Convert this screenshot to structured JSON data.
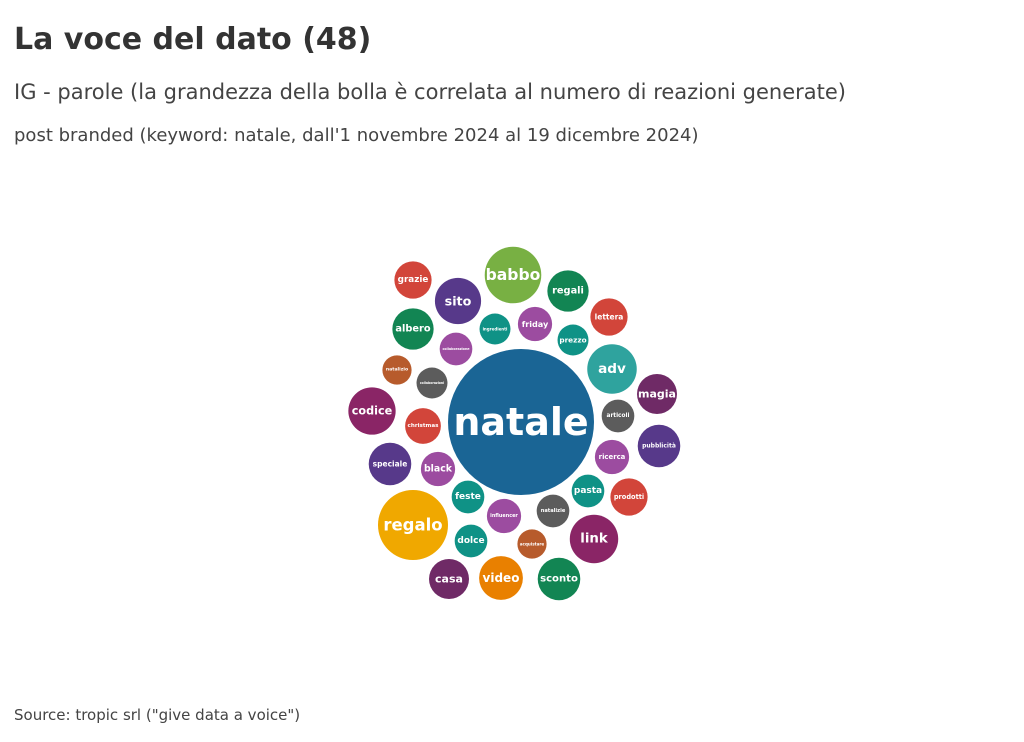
{
  "title": "La voce del dato (48)",
  "subtitle": "IG - parole (la grandezza della bolla è correlata al numero di reazioni generate)",
  "note": "post branded (keyword: natale, dall'1 novembre 2024 al 19 dicembre 2024)",
  "source": "Source: tropic srl (\"give data a voice\")",
  "chart_data": {
    "type": "bubble",
    "size_encoding": "numero di reazioni generate",
    "bubbles": [
      {
        "label": "natale",
        "size": 100,
        "color": "#1a6595"
      },
      {
        "label": "regalo",
        "size": 23,
        "color": "#f0a800"
      },
      {
        "label": "babbo",
        "size": 15,
        "color": "#78b043"
      },
      {
        "label": "adv",
        "size": 11.5,
        "color": "#2fa39e"
      },
      {
        "label": "link",
        "size": 11,
        "color": "#8a2566"
      },
      {
        "label": "codice",
        "size": 10.5,
        "color": "#8a2566"
      },
      {
        "label": "sito",
        "size": 10,
        "color": "#57398a"
      },
      {
        "label": "video",
        "size": 9,
        "color": "#e98000"
      },
      {
        "label": "sconto",
        "size": 8.5,
        "color": "#128553"
      },
      {
        "label": "pubblicità",
        "size": 8.5,
        "color": "#57398a"
      },
      {
        "label": "speciale",
        "size": 8.5,
        "color": "#57398a"
      },
      {
        "label": "regali",
        "size": 8,
        "color": "#128553"
      },
      {
        "label": "albero",
        "size": 8,
        "color": "#128553"
      },
      {
        "label": "casa",
        "size": 7.5,
        "color": "#6f2a66"
      },
      {
        "label": "magia",
        "size": 7.5,
        "color": "#6f2a66"
      },
      {
        "label": "lettera",
        "size": 6.5,
        "color": "#d2453a"
      },
      {
        "label": "prodotti",
        "size": 6.5,
        "color": "#d2453a"
      },
      {
        "label": "grazie",
        "size": 6.5,
        "color": "#d2453a"
      },
      {
        "label": "christmas",
        "size": 6,
        "color": "#d2453a"
      },
      {
        "label": "black",
        "size": 5.5,
        "color": "#9c4ca0"
      },
      {
        "label": "ricerca",
        "size": 5.5,
        "color": "#9c4ca0"
      },
      {
        "label": "friday",
        "size": 5.5,
        "color": "#9c4ca0"
      },
      {
        "label": "influencer",
        "size": 5.5,
        "color": "#9c4ca0"
      },
      {
        "label": "collaborazione",
        "size": 5,
        "color": "#9c4ca0"
      },
      {
        "label": "articoli",
        "size": 5,
        "color": "#5c5c5c"
      },
      {
        "label": "natalizie",
        "size": 5,
        "color": "#5c5c5c"
      },
      {
        "label": "collaborazioni",
        "size": 4.5,
        "color": "#5c5c5c"
      },
      {
        "label": "feste",
        "size": 5,
        "color": "#0f9286"
      },
      {
        "label": "dolce",
        "size": 5,
        "color": "#0f9286"
      },
      {
        "label": "pasta",
        "size": 5,
        "color": "#0f9286"
      },
      {
        "label": "ingredienti",
        "size": 4.5,
        "color": "#0f9286"
      },
      {
        "label": "prezzo",
        "size": 4.5,
        "color": "#0f9286"
      },
      {
        "label": "natalizio",
        "size": 4,
        "color": "#b75b2c"
      },
      {
        "label": "acquistare",
        "size": 4,
        "color": "#b75b2c"
      }
    ]
  }
}
